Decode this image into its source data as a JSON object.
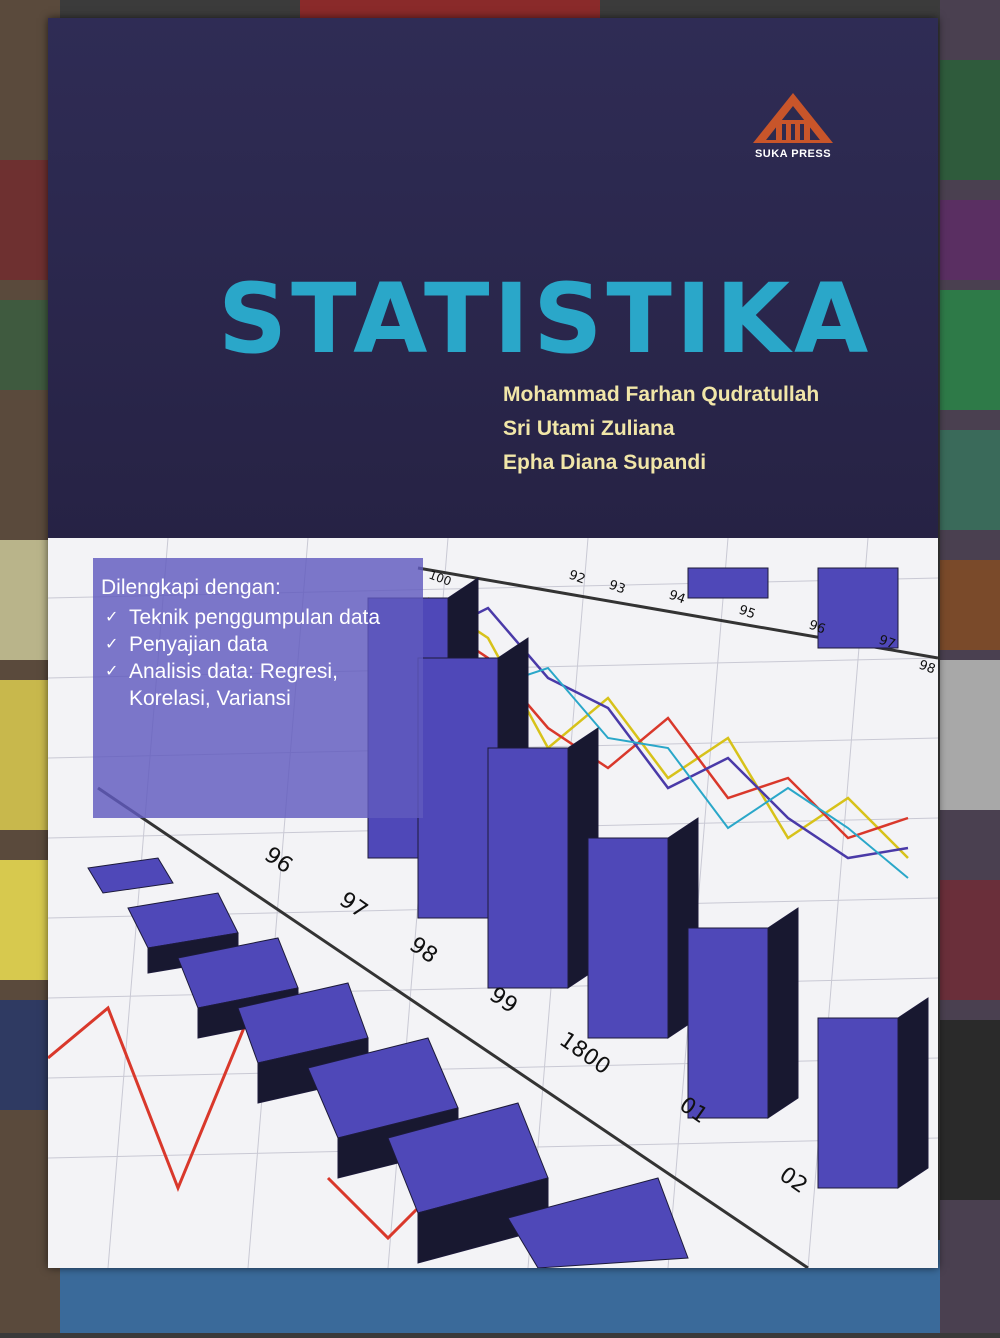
{
  "publisher": {
    "name": "SUKA PRESS",
    "logo_icon": "triangle-emblem-icon"
  },
  "book": {
    "title": "STATISTIKA",
    "authors": [
      "Mohammad Farhan Qudratullah",
      "Sri Utami Zuliana",
      "Epha Diana Supandi"
    ],
    "features_heading": "Dilengkapi dengan:",
    "features": [
      "Teknik penggumpulan data",
      "Penyajian data",
      "Analisis data: Regresi, Korelasi, Variansi"
    ],
    "chart_labels": [
      "100",
      "92",
      "93",
      "94",
      "95",
      "96",
      "97",
      "98",
      "96",
      "97",
      "98",
      "99",
      "1800",
      "01",
      "02"
    ]
  },
  "colors": {
    "cover": "#2d2a4e",
    "title": "#2aa7c9",
    "authors": "#f1e6a8",
    "bars": "#4f48b8",
    "info_box": "#605abe"
  }
}
